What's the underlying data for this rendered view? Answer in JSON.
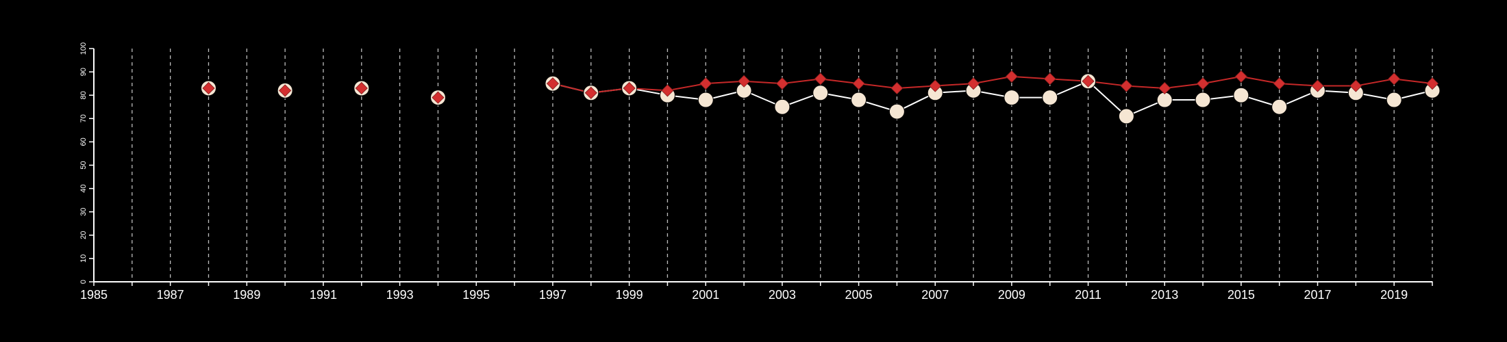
{
  "chart_data": {
    "type": "line",
    "title": "",
    "xlabel": "",
    "ylabel": "",
    "xlim": [
      1985,
      2020
    ],
    "ylim": [
      0,
      100
    ],
    "x_ticks": [
      1985,
      1986,
      1987,
      1988,
      1989,
      1990,
      1991,
      1992,
      1993,
      1994,
      1995,
      1996,
      1997,
      1998,
      1999,
      2000,
      2001,
      2002,
      2003,
      2004,
      2005,
      2006,
      2007,
      2008,
      2009,
      2010,
      2011,
      2012,
      2013,
      2014,
      2015,
      2016,
      2017,
      2018,
      2019,
      2020
    ],
    "x_tick_labels": [
      "1985",
      "1987",
      "1989",
      "1991",
      "1993",
      "1995",
      "1997",
      "1999",
      "2001",
      "2003",
      "2005",
      "2007",
      "2009",
      "2011",
      "2013",
      "2015",
      "2017",
      "2019"
    ],
    "y_ticks": [
      0,
      10,
      20,
      30,
      40,
      50,
      60,
      70,
      80,
      90,
      100
    ],
    "y_tick_labels": [
      "0",
      "10",
      "20",
      "30",
      "40",
      "50",
      "60",
      "70",
      "80",
      "90",
      "100"
    ],
    "grid": "vertical dashed lines at every year",
    "legend": "none",
    "background_color": "#000000",
    "series": [
      {
        "marker": "circle",
        "line_color": "#ffffff",
        "marker_color": "#f5e6d3",
        "marker_center_color": "#c62828",
        "points": [
          [
            1988,
            83
          ],
          [
            1990,
            82
          ],
          [
            1992,
            83
          ],
          [
            1994,
            79
          ],
          [
            1997,
            85
          ],
          [
            1998,
            81
          ],
          [
            1999,
            83
          ],
          [
            2000,
            80
          ],
          [
            2001,
            78
          ],
          [
            2002,
            82
          ],
          [
            2003,
            75
          ],
          [
            2004,
            81
          ],
          [
            2005,
            78
          ],
          [
            2006,
            73
          ],
          [
            2007,
            81
          ],
          [
            2008,
            82
          ],
          [
            2009,
            79
          ],
          [
            2010,
            79
          ],
          [
            2011,
            86
          ],
          [
            2012,
            71
          ],
          [
            2013,
            78
          ],
          [
            2014,
            78
          ],
          [
            2015,
            80
          ],
          [
            2016,
            75
          ],
          [
            2017,
            82
          ],
          [
            2018,
            81
          ],
          [
            2019,
            78
          ],
          [
            2020,
            82
          ]
        ]
      },
      {
        "marker": "diamond",
        "line_color": "#c62828",
        "marker_color": "#d32f2f",
        "points": [
          [
            1988,
            83
          ],
          [
            1990,
            82
          ],
          [
            1992,
            83
          ],
          [
            1994,
            79
          ],
          [
            1997,
            85
          ],
          [
            1998,
            81
          ],
          [
            1999,
            83
          ],
          [
            2000,
            82
          ],
          [
            2001,
            85
          ],
          [
            2002,
            86
          ],
          [
            2003,
            85
          ],
          [
            2004,
            87
          ],
          [
            2005,
            85
          ],
          [
            2006,
            83
          ],
          [
            2007,
            84
          ],
          [
            2008,
            85
          ],
          [
            2009,
            88
          ],
          [
            2010,
            87
          ],
          [
            2011,
            86
          ],
          [
            2012,
            84
          ],
          [
            2013,
            83
          ],
          [
            2014,
            85
          ],
          [
            2015,
            88
          ],
          [
            2016,
            85
          ],
          [
            2017,
            84
          ],
          [
            2018,
            84
          ],
          [
            2019,
            87
          ],
          [
            2020,
            85
          ]
        ]
      }
    ]
  }
}
